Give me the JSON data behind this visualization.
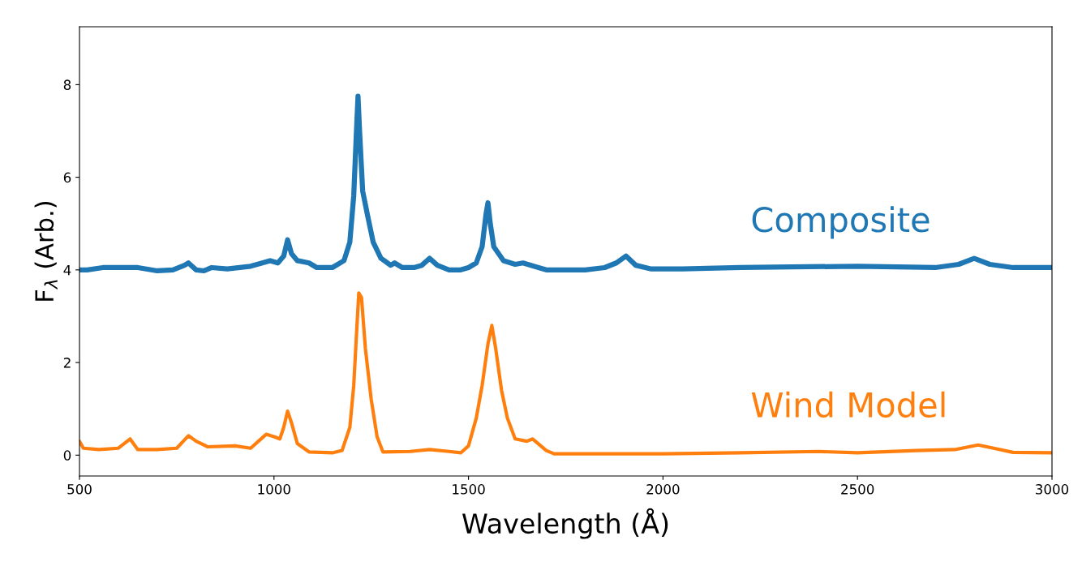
{
  "chart_data": {
    "type": "line",
    "xlabel": "Wavelength (Å)",
    "ylabel": "F$_{λ}$ (Arb.)",
    "xlim": [
      500,
      3000
    ],
    "xticks": [
      500,
      1000,
      1500,
      2000,
      2500,
      3000
    ],
    "ylim": [
      -0.45,
      9.25
    ],
    "yticks": [
      0,
      2,
      4,
      6,
      8
    ],
    "grid": false,
    "legend": false,
    "marker": "none",
    "line_style": "solid",
    "series": [
      {
        "name": "Composite",
        "color": "#1f77b4",
        "x": [
          500,
          520,
          560,
          600,
          650,
          700,
          740,
          770,
          780,
          800,
          820,
          840,
          880,
          940,
          970,
          990,
          1010,
          1025,
          1035,
          1045,
          1060,
          1090,
          1110,
          1150,
          1180,
          1195,
          1205,
          1212,
          1216,
          1220,
          1228,
          1240,
          1255,
          1275,
          1300,
          1310,
          1330,
          1360,
          1380,
          1400,
          1420,
          1450,
          1480,
          1500,
          1520,
          1535,
          1545,
          1550,
          1556,
          1565,
          1590,
          1620,
          1640,
          1680,
          1700,
          1760,
          1800,
          1850,
          1880,
          1905,
          1930,
          1970,
          2050,
          2200,
          2500,
          2700,
          2760,
          2800,
          2840,
          2900,
          3000
        ],
        "values": [
          4.0,
          4.0,
          4.05,
          4.05,
          4.05,
          3.98,
          4.0,
          4.1,
          4.15,
          4.0,
          3.98,
          4.05,
          4.02,
          4.08,
          4.15,
          4.2,
          4.15,
          4.3,
          4.65,
          4.35,
          4.2,
          4.15,
          4.05,
          4.05,
          4.2,
          4.6,
          5.6,
          7.0,
          7.75,
          7.0,
          5.7,
          5.2,
          4.6,
          4.25,
          4.1,
          4.15,
          4.05,
          4.05,
          4.1,
          4.25,
          4.1,
          4.0,
          4.0,
          4.05,
          4.15,
          4.5,
          5.2,
          5.45,
          5.0,
          4.5,
          4.2,
          4.12,
          4.15,
          4.05,
          4.0,
          4.0,
          4.0,
          4.05,
          4.15,
          4.3,
          4.1,
          4.02,
          4.02,
          4.05,
          4.08,
          4.05,
          4.12,
          4.25,
          4.12,
          4.05,
          4.05
        ]
      },
      {
        "name": "Wind Model",
        "color": "#ff7f0e",
        "x": [
          500,
          510,
          550,
          600,
          630,
          650,
          700,
          750,
          780,
          800,
          830,
          900,
          940,
          960,
          980,
          1000,
          1015,
          1025,
          1035,
          1045,
          1060,
          1090,
          1150,
          1175,
          1195,
          1205,
          1212,
          1218,
          1225,
          1235,
          1250,
          1265,
          1280,
          1350,
          1400,
          1450,
          1480,
          1500,
          1520,
          1535,
          1550,
          1560,
          1570,
          1585,
          1600,
          1620,
          1650,
          1665,
          1700,
          1720,
          1800,
          2000,
          2200,
          2400,
          2500,
          2650,
          2750,
          2810,
          2850,
          2900,
          3000
        ],
        "values": [
          0.3,
          0.15,
          0.12,
          0.15,
          0.35,
          0.12,
          0.12,
          0.15,
          0.42,
          0.3,
          0.18,
          0.2,
          0.15,
          0.3,
          0.45,
          0.4,
          0.35,
          0.6,
          0.95,
          0.7,
          0.25,
          0.07,
          0.05,
          0.1,
          0.6,
          1.5,
          2.6,
          3.5,
          3.4,
          2.3,
          1.2,
          0.4,
          0.07,
          0.08,
          0.12,
          0.08,
          0.05,
          0.2,
          0.8,
          1.5,
          2.4,
          2.8,
          2.3,
          1.4,
          0.8,
          0.35,
          0.3,
          0.35,
          0.1,
          0.03,
          0.03,
          0.03,
          0.05,
          0.08,
          0.05,
          0.1,
          0.12,
          0.22,
          0.15,
          0.06,
          0.05
        ]
      }
    ]
  }
}
